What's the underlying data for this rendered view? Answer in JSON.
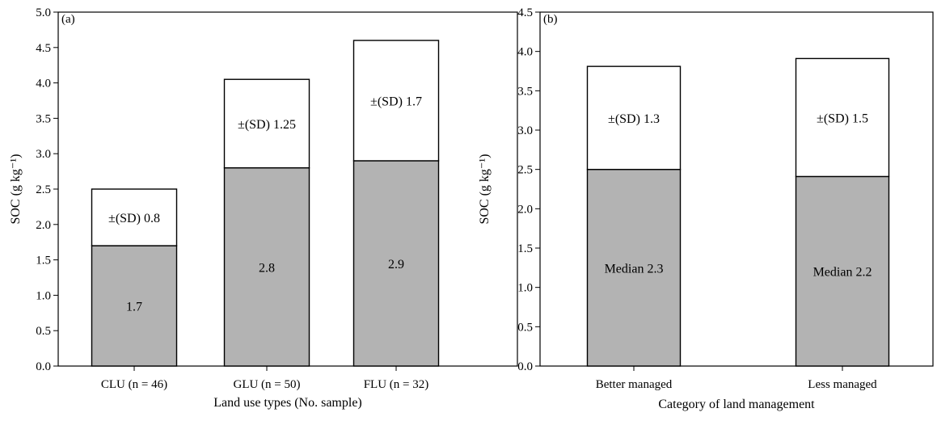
{
  "chart_data": [
    {
      "type": "bar",
      "stacked": true,
      "panel_label": "(a)",
      "categories": [
        "CLU (n = 46)",
        "GLU (n = 50)",
        "FLU (n = 32)"
      ],
      "series": [
        {
          "values": [
            1.7,
            2.8,
            2.9
          ],
          "color": "#b3b3b3"
        },
        {
          "values": [
            0.8,
            1.25,
            1.7
          ],
          "color": "#ffffff"
        }
      ],
      "lower_labels": [
        "1.7",
        "2.8",
        "2.9"
      ],
      "upper_labels": [
        "±(SD) 0.8",
        "±(SD) 1.25",
        "±(SD) 1.7"
      ],
      "xlabel": "Land use types (No. sample)",
      "ylabel": "SOC (g kg⁻¹)",
      "ylim": [
        0,
        5.0
      ],
      "yticks": [
        "0.0",
        "0.5",
        "1.0",
        "1.5",
        "2.0",
        "2.5",
        "3.0",
        "3.5",
        "4.0",
        "4.5",
        "5.0"
      ],
      "grid": false
    },
    {
      "type": "bar",
      "stacked": true,
      "panel_label": "(b)",
      "categories": [
        "Better managed",
        "Less managed"
      ],
      "series": [
        {
          "values": [
            2.5,
            2.41
          ],
          "color": "#b3b3b3"
        },
        {
          "values": [
            1.31,
            1.5
          ],
          "color": "#ffffff"
        }
      ],
      "lower_labels": [
        "Median 2.3",
        "Median 2.2"
      ],
      "upper_labels": [
        "±(SD) 1.3",
        "±(SD) 1.5"
      ],
      "xlabel": "Category of land management",
      "ylabel": "SOC (g kg⁻¹)",
      "ylim": [
        0,
        4.5
      ],
      "yticks": [
        "0.0",
        "0.5",
        "1.0",
        "1.5",
        "2.0",
        "2.5",
        "3.0",
        "3.5",
        "4.0",
        "4.5"
      ],
      "grid": false
    }
  ]
}
